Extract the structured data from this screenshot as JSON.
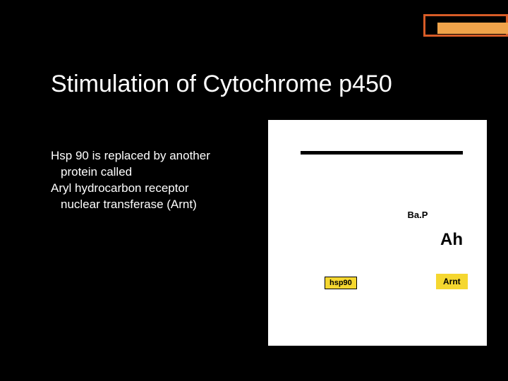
{
  "accent": {
    "border_color": "#d85c27",
    "fill_color": "#f0a34a"
  },
  "title": {
    "text": "Stimulation of Cytochrome p450",
    "color": "#ffffff"
  },
  "body": {
    "color": "#ffffff",
    "line1": "Hsp 90 is replaced by another",
    "line2": "protein called",
    "line3": "Aryl hydrocarbon receptor",
    "line4": "nuclear transferase (Arnt)"
  },
  "diagram": {
    "background": "#ffffff",
    "membrane_color": "#000000",
    "bap": {
      "label": "Ba.P",
      "fill": "#b8b8b8"
    },
    "ah": {
      "label": "Ah",
      "fill": "#2a7d2a"
    },
    "hsp90": {
      "label": "hsp90",
      "fill": "#f5d730"
    },
    "arnt": {
      "label": "Arnt",
      "fill": "#f5d730"
    }
  }
}
